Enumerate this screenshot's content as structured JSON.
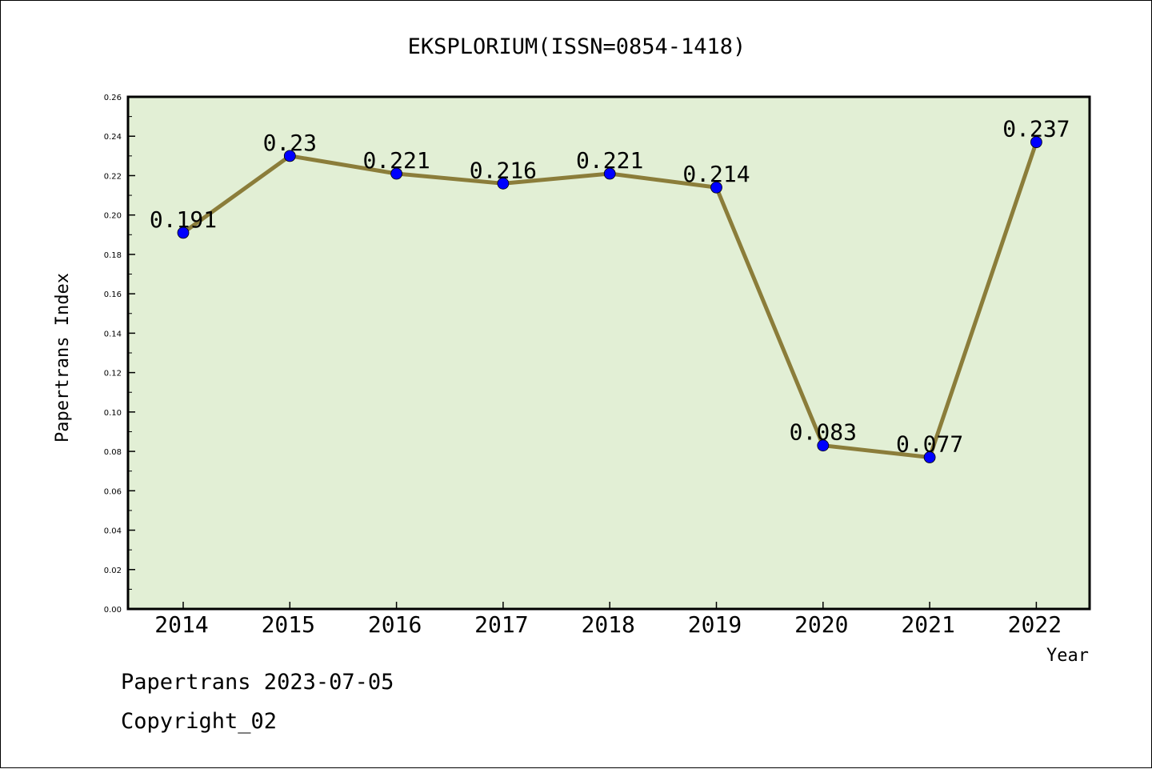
{
  "chart_data": {
    "type": "line",
    "title": "EKSPLORIUM(ISSN=0854-1418)",
    "xlabel": "Year",
    "ylabel": "Papertrans Index",
    "categories": [
      "2014",
      "2015",
      "2016",
      "2017",
      "2018",
      "2019",
      "2020",
      "2021",
      "2022"
    ],
    "values": [
      0.191,
      0.23,
      0.221,
      0.216,
      0.221,
      0.214,
      0.083,
      0.077,
      0.237
    ],
    "data_labels": [
      "0.191",
      "0.23",
      "0.221",
      "0.216",
      "0.221",
      "0.214",
      "0.083",
      "0.077",
      "0.237"
    ],
    "ylim": [
      0,
      0.26
    ],
    "yticks": [
      "0.00",
      "0.02",
      "0.04",
      "0.06",
      "0.08",
      "0.10",
      "0.12",
      "0.14",
      "0.16",
      "0.18",
      "0.20",
      "0.22",
      "0.24",
      "0.26"
    ],
    "grid": false,
    "plot_background": "#e2efd5",
    "line_color": "#8b7d3a",
    "marker_color": "#0000ff"
  },
  "footer": {
    "line1": "Papertrans 2023-07-05",
    "line2": "Copyright_02"
  }
}
